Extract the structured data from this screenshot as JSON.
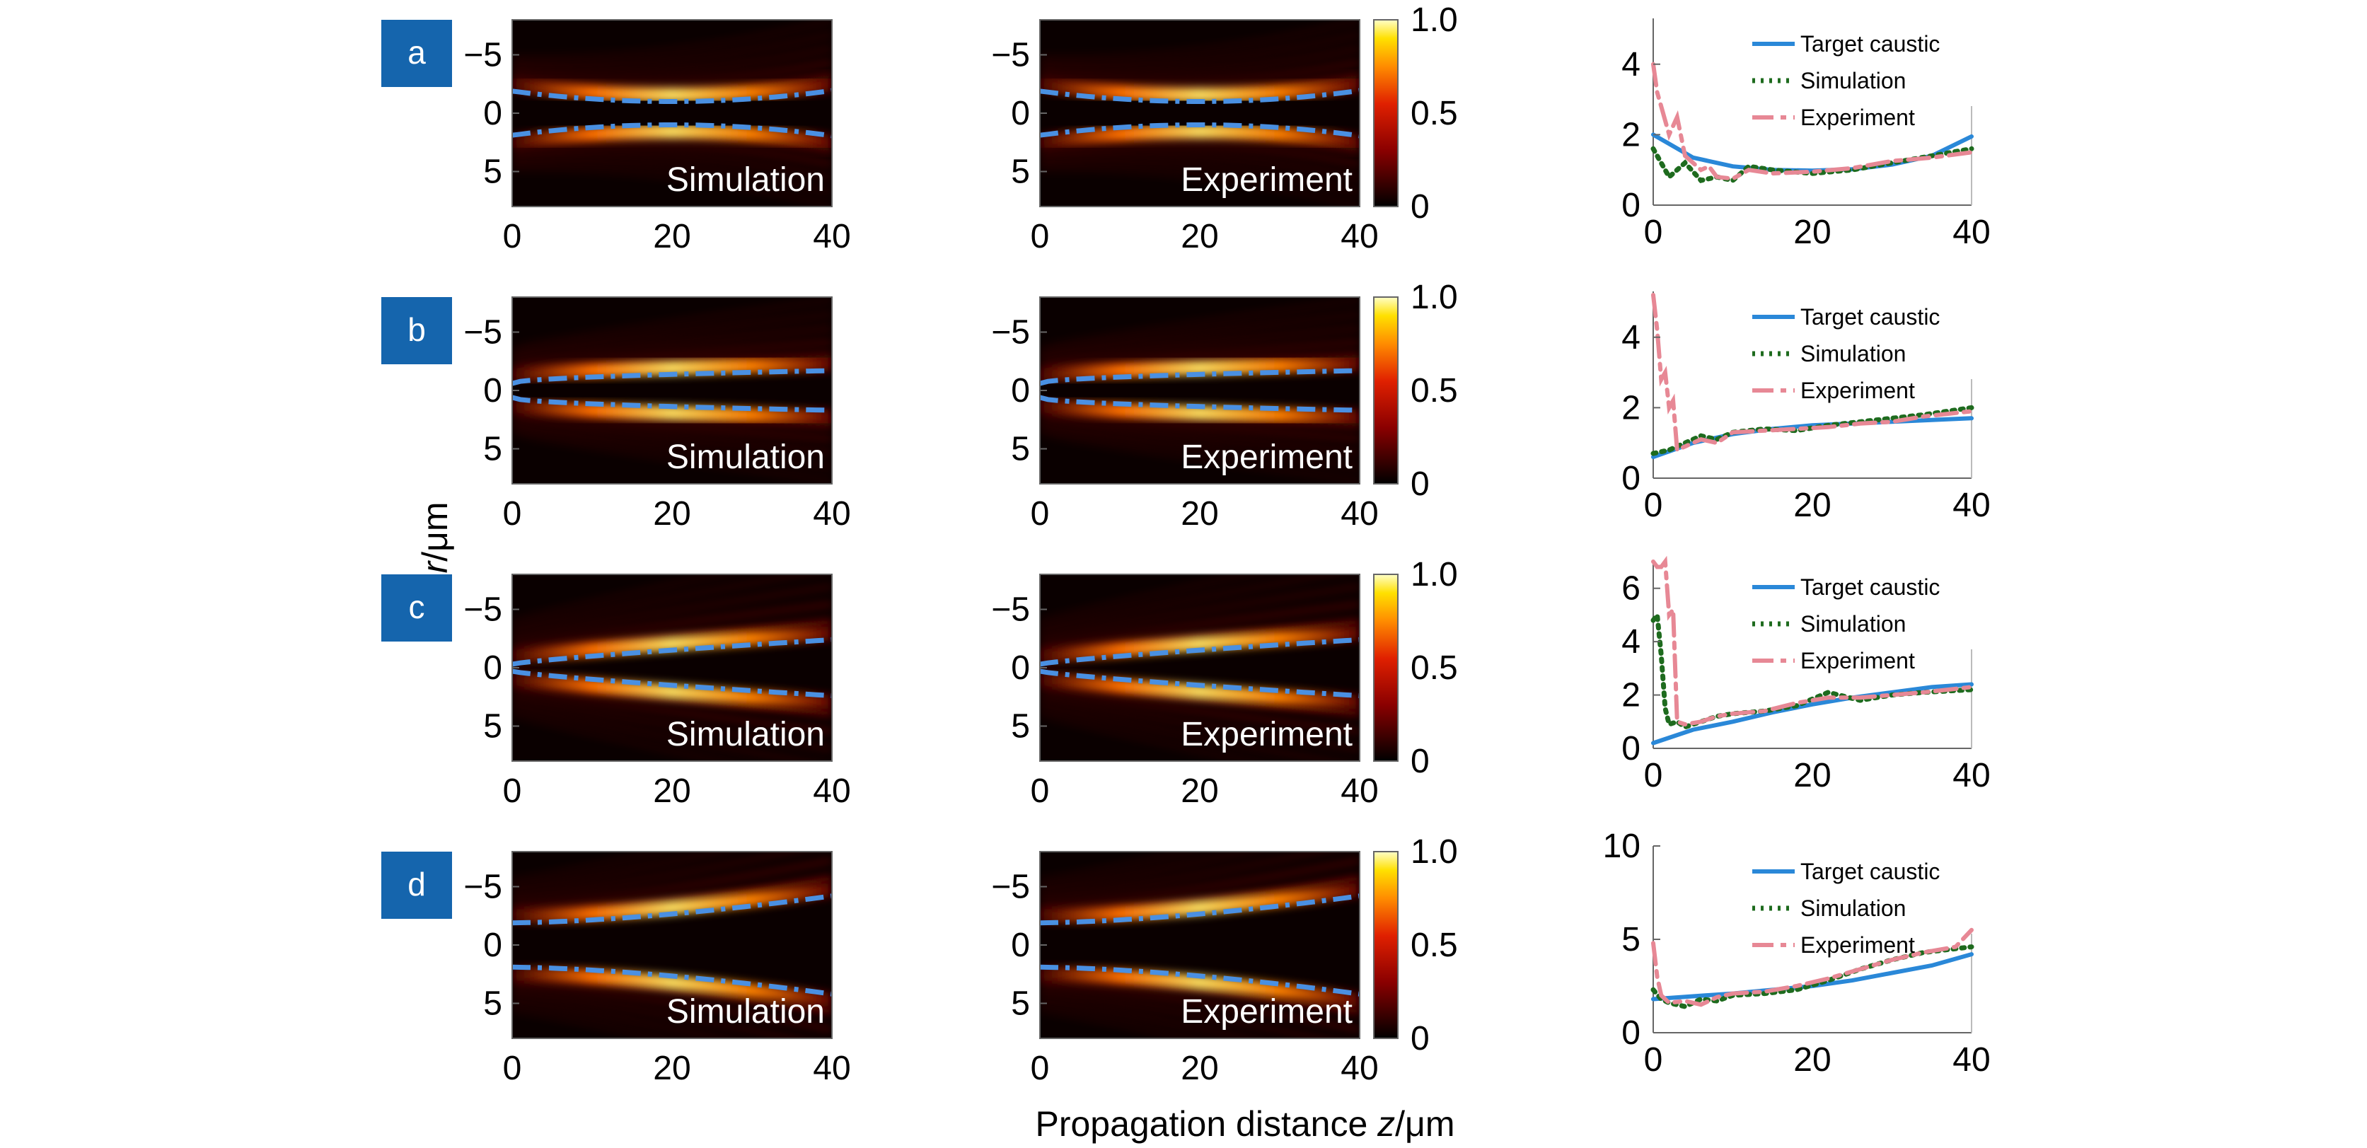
{
  "figure": {
    "x_axis_label_prefix": "Propagation distance ",
    "x_axis_label_var": "z",
    "x_axis_label_unit": "/μm",
    "y_axis_label_var": "r",
    "y_axis_label_unit": "/μm"
  },
  "colors": {
    "badge": "#1565ad",
    "target": "#2a88d8",
    "simulation": "#1e6b1e",
    "experiment": "#e78895",
    "caustic_overlay": "#4a90e2"
  },
  "chart_data": [
    {
      "type": "heatmap",
      "row": "a",
      "panel": "simulation",
      "label": "Simulation",
      "x_ticks": [
        "0",
        "20",
        "40"
      ],
      "y_ticks": [
        "−5",
        "0",
        "5"
      ],
      "xlim": [
        0,
        40
      ],
      "ylim": [
        -8,
        8
      ],
      "colorbar": null
    },
    {
      "type": "heatmap",
      "row": "a",
      "panel": "experiment",
      "label": "Experiment",
      "x_ticks": [
        "0",
        "20",
        "40"
      ],
      "y_ticks": [
        "−5",
        "0",
        "5"
      ],
      "xlim": [
        0,
        40
      ],
      "ylim": [
        -8,
        8
      ],
      "colorbar": {
        "ticks": [
          "1.0",
          "0.5",
          "0"
        ],
        "range": [
          0,
          1
        ]
      }
    },
    {
      "type": "line",
      "row": "a",
      "panel": "caustic",
      "x_ticks": [
        "0",
        "20",
        "40"
      ],
      "y_ticks": [
        "4",
        "2",
        "0"
      ],
      "xlim": [
        0,
        40
      ],
      "ylim": [
        0,
        5.3
      ],
      "series": [
        {
          "name": "Target caustic",
          "x": [
            0,
            5,
            10,
            15,
            20,
            25,
            30,
            35,
            40
          ],
          "y": [
            2.0,
            1.35,
            1.1,
            1.0,
            0.98,
            1.02,
            1.15,
            1.4,
            1.95
          ]
        },
        {
          "name": "Simulation",
          "x": [
            0,
            2,
            4,
            6,
            8,
            10,
            12,
            15,
            20,
            25,
            30,
            35,
            40
          ],
          "y": [
            1.6,
            0.8,
            1.2,
            0.7,
            0.8,
            0.7,
            1.1,
            1.0,
            0.9,
            1.0,
            1.2,
            1.4,
            1.6
          ]
        },
        {
          "name": "Experiment",
          "x": [
            0,
            0.5,
            1,
            2,
            3,
            4,
            5,
            6,
            7,
            8,
            10,
            12,
            15,
            20,
            25,
            30,
            35,
            40
          ],
          "y": [
            4.0,
            3.2,
            2.8,
            2.0,
            2.5,
            1.4,
            1.2,
            1.0,
            1.1,
            0.8,
            0.75,
            1.0,
            0.9,
            0.95,
            1.05,
            1.25,
            1.35,
            1.5
          ]
        }
      ]
    },
    {
      "type": "heatmap",
      "row": "b",
      "panel": "simulation",
      "label": "Simulation",
      "x_ticks": [
        "0",
        "20",
        "40"
      ],
      "y_ticks": [
        "−5",
        "0",
        "5"
      ],
      "xlim": [
        0,
        40
      ],
      "ylim": [
        -8,
        8
      ],
      "colorbar": null
    },
    {
      "type": "heatmap",
      "row": "b",
      "panel": "experiment",
      "label": "Experiment",
      "x_ticks": [
        "0",
        "20",
        "40"
      ],
      "y_ticks": [
        "−5",
        "0",
        "5"
      ],
      "xlim": [
        0,
        40
      ],
      "ylim": [
        -8,
        8
      ],
      "colorbar": {
        "ticks": [
          "1.0",
          "0.5",
          "0"
        ],
        "range": [
          0,
          1
        ]
      }
    },
    {
      "type": "line",
      "row": "b",
      "panel": "caustic",
      "x_ticks": [
        "0",
        "20",
        "40"
      ],
      "y_ticks": [
        "4",
        "2",
        "0"
      ],
      "xlim": [
        0,
        40
      ],
      "ylim": [
        0,
        5.3
      ],
      "series": [
        {
          "name": "Target caustic",
          "x": [
            0,
            5,
            10,
            15,
            20,
            25,
            30,
            35,
            40
          ],
          "y": [
            0.6,
            1.0,
            1.25,
            1.4,
            1.5,
            1.55,
            1.6,
            1.65,
            1.7
          ]
        },
        {
          "name": "Simulation",
          "x": [
            0,
            2,
            4,
            6,
            8,
            10,
            14,
            18,
            22,
            26,
            30,
            34,
            40
          ],
          "y": [
            0.7,
            0.8,
            1.0,
            1.2,
            1.1,
            1.3,
            1.4,
            1.35,
            1.5,
            1.6,
            1.7,
            1.8,
            2.0
          ]
        },
        {
          "name": "Experiment",
          "x": [
            0,
            0.5,
            1,
            1.5,
            2,
            2.5,
            3,
            4,
            6,
            8,
            10,
            14,
            18,
            22,
            26,
            30,
            34,
            40
          ],
          "y": [
            5.2,
            4.2,
            2.8,
            3.0,
            2.0,
            2.2,
            0.8,
            0.9,
            1.1,
            1.0,
            1.3,
            1.35,
            1.4,
            1.45,
            1.55,
            1.6,
            1.75,
            1.9
          ]
        }
      ]
    },
    {
      "type": "heatmap",
      "row": "c",
      "panel": "simulation",
      "label": "Simulation",
      "x_ticks": [
        "0",
        "20",
        "40"
      ],
      "y_ticks": [
        "−5",
        "0",
        "5"
      ],
      "xlim": [
        0,
        40
      ],
      "ylim": [
        -8,
        8
      ],
      "colorbar": null
    },
    {
      "type": "heatmap",
      "row": "c",
      "panel": "experiment",
      "label": "Experiment",
      "x_ticks": [
        "0",
        "20",
        "40"
      ],
      "y_ticks": [
        "−5",
        "0",
        "5"
      ],
      "xlim": [
        0,
        40
      ],
      "ylim": [
        -8,
        8
      ],
      "colorbar": {
        "ticks": [
          "1.0",
          "0.5",
          "0"
        ],
        "range": [
          0,
          1
        ]
      }
    },
    {
      "type": "line",
      "row": "c",
      "panel": "caustic",
      "x_ticks": [
        "0",
        "20",
        "40"
      ],
      "y_ticks": [
        "6",
        "4",
        "2",
        "0"
      ],
      "xlim": [
        0,
        40
      ],
      "ylim": [
        0,
        7
      ],
      "series": [
        {
          "name": "Target caustic",
          "x": [
            0,
            5,
            10,
            15,
            20,
            25,
            30,
            35,
            40
          ],
          "y": [
            0.2,
            0.7,
            1.0,
            1.35,
            1.65,
            1.9,
            2.1,
            2.3,
            2.4
          ]
        },
        {
          "name": "Simulation",
          "x": [
            0,
            0.5,
            1,
            1.5,
            2,
            3,
            4,
            6,
            8,
            10,
            14,
            18,
            22,
            26,
            30,
            34,
            40
          ],
          "y": [
            4.8,
            5.0,
            3.5,
            1.5,
            0.9,
            1.0,
            0.8,
            1.0,
            1.2,
            1.3,
            1.4,
            1.6,
            2.1,
            1.8,
            2.0,
            2.1,
            2.2
          ]
        },
        {
          "name": "Experiment",
          "x": [
            0,
            0.5,
            1,
            1.5,
            2,
            2.5,
            3,
            4,
            6,
            8,
            10,
            14,
            18,
            22,
            26,
            30,
            34,
            40
          ],
          "y": [
            7.0,
            6.8,
            6.8,
            7.0,
            5.0,
            5.2,
            1.0,
            0.9,
            1.0,
            1.2,
            1.3,
            1.4,
            1.7,
            1.9,
            1.9,
            2.0,
            2.1,
            2.3
          ]
        }
      ]
    },
    {
      "type": "heatmap",
      "row": "d",
      "panel": "simulation",
      "label": "Simulation",
      "x_ticks": [
        "0",
        "20",
        "40"
      ],
      "y_ticks": [
        "−5",
        "0",
        "5"
      ],
      "xlim": [
        0,
        40
      ],
      "ylim": [
        -8,
        8
      ],
      "colorbar": null
    },
    {
      "type": "heatmap",
      "row": "d",
      "panel": "experiment",
      "label": "Experiment",
      "x_ticks": [
        "0",
        "20",
        "40"
      ],
      "y_ticks": [
        "−5",
        "0",
        "5"
      ],
      "xlim": [
        0,
        40
      ],
      "ylim": [
        -8,
        8
      ],
      "colorbar": {
        "ticks": [
          "1.0",
          "0.5",
          "0"
        ],
        "range": [
          0,
          1
        ]
      }
    },
    {
      "type": "line",
      "row": "d",
      "panel": "caustic",
      "x_ticks": [
        "0",
        "20",
        "40"
      ],
      "y_ticks": [
        "10",
        "5",
        "0"
      ],
      "xlim": [
        0,
        40
      ],
      "ylim": [
        0,
        10
      ],
      "series": [
        {
          "name": "Target caustic",
          "x": [
            0,
            5,
            10,
            15,
            20,
            25,
            30,
            35,
            40
          ],
          "y": [
            1.8,
            1.95,
            2.1,
            2.3,
            2.5,
            2.8,
            3.2,
            3.6,
            4.2
          ]
        },
        {
          "name": "Simulation",
          "x": [
            0,
            1,
            2,
            4,
            6,
            8,
            10,
            14,
            18,
            22,
            26,
            30,
            34,
            40
          ],
          "y": [
            2.3,
            1.8,
            1.6,
            1.4,
            1.8,
            1.7,
            2.0,
            2.1,
            2.3,
            2.8,
            3.4,
            3.9,
            4.3,
            4.6
          ]
        },
        {
          "name": "Experiment",
          "x": [
            0,
            0.5,
            1,
            2,
            4,
            6,
            8,
            10,
            14,
            18,
            22,
            26,
            30,
            34,
            38,
            40
          ],
          "y": [
            4.8,
            3.0,
            2.0,
            1.6,
            1.7,
            1.5,
            1.9,
            2.1,
            2.2,
            2.5,
            2.9,
            3.4,
            3.9,
            4.3,
            4.6,
            5.5
          ]
        }
      ]
    }
  ]
}
